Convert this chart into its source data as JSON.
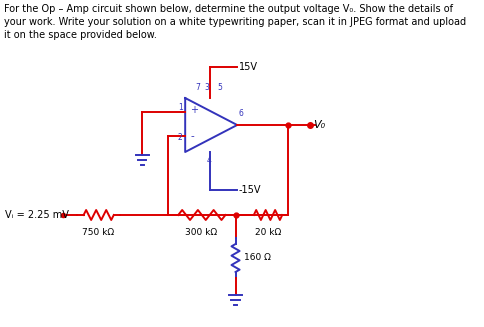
{
  "title_text": "For the Op – Amp circuit shown below, determine the output voltage V₀. Show the details of\nyour work. Write your solution on a white typewriting paper, scan it in JPEG format and upload\nit on the space provided below.",
  "bg_color": "#ffffff",
  "rc": "#dd0000",
  "bc": "#3333bb",
  "tc": "#000000",
  "label_Vi": "Vᵢ = 2.25 mV",
  "label_R1": "750 kΩ",
  "label_R2": "300 kΩ",
  "label_R3": "20 kΩ",
  "label_R4": "160 Ω",
  "label_15V": "15V",
  "label_n15V": "-15V",
  "label_Vo": "V₀",
  "pin1": "1",
  "pin2": "2",
  "pin3": "3",
  "pin4": "4",
  "pin5": "5",
  "pin6": "6",
  "pin7": "7",
  "plus": "+",
  "minus": "-"
}
